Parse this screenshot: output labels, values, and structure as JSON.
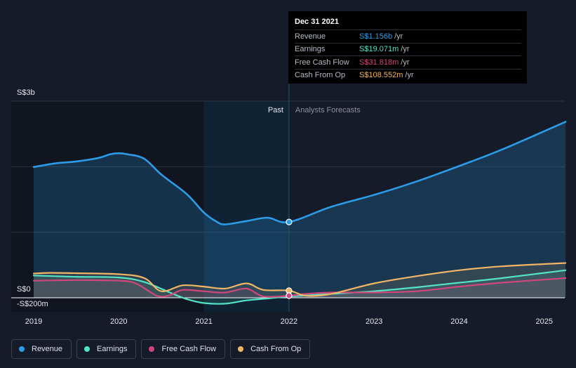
{
  "colors": {
    "revenue": "#2d9be6",
    "earnings": "#54e3c6",
    "free_cash_flow": "#d0477c",
    "cash_from_op": "#f0b665",
    "background": "#151b28"
  },
  "tooltip": {
    "date": "Dec 31 2021",
    "rows": [
      {
        "label": "Revenue",
        "value": "S$1.156b",
        "unit": "/yr"
      },
      {
        "label": "Earnings",
        "value": "S$19.071m",
        "unit": "/yr"
      },
      {
        "label": "Free Cash Flow",
        "value": "S$31.818m",
        "unit": "/yr"
      },
      {
        "label": "Cash From Op",
        "value": "S$108.552m",
        "unit": "/yr"
      }
    ]
  },
  "legend": [
    {
      "label": "Revenue",
      "icon": "revenue-dot"
    },
    {
      "label": "Earnings",
      "icon": "earnings-dot"
    },
    {
      "label": "Free Cash Flow",
      "icon": "free-cash-flow-dot"
    },
    {
      "label": "Cash From Op",
      "icon": "cash-from-op-dot"
    }
  ],
  "chart_data": {
    "type": "area",
    "title": "",
    "xlabel": "",
    "ylabel": "",
    "ylim": [
      -200,
      3000
    ],
    "xlim": [
      2018.97,
      2025.25
    ],
    "y_axis_labels": [
      {
        "text": "S$3b",
        "value": 3000
      },
      {
        "text": "S$0",
        "value": 0
      },
      {
        "text": "-S$200m",
        "value": -200
      }
    ],
    "x_ticks": [
      "2019",
      "2020",
      "2021",
      "2022",
      "2023",
      "2024",
      "2025"
    ],
    "x_tick_values": [
      2019,
      2020,
      2021,
      2022,
      2023,
      2024,
      2025
    ],
    "divider": {
      "x": 2022.0,
      "past_label": "Past",
      "forecast_label": "Analysts Forecasts"
    },
    "highlight_start": 2021.0,
    "series": [
      {
        "name": "Revenue",
        "key": "revenue",
        "x": [
          2019.0,
          2019.25,
          2019.5,
          2019.75,
          2019.9,
          2020.0,
          2020.1,
          2020.3,
          2020.5,
          2020.8,
          2021.0,
          2021.15,
          2021.25,
          2021.5,
          2021.75,
          2022.0,
          2022.5,
          2023.0,
          2023.5,
          2024.0,
          2024.5,
          2025.25
        ],
        "values": [
          1995,
          2050,
          2080,
          2130,
          2190,
          2205,
          2190,
          2120,
          1880,
          1580,
          1300,
          1160,
          1120,
          1170,
          1220,
          1156,
          1390,
          1570,
          1775,
          2010,
          2260,
          2685
        ]
      },
      {
        "name": "Earnings",
        "key": "earnings",
        "x": [
          2019.0,
          2019.5,
          2020.0,
          2020.3,
          2020.6,
          2020.8,
          2021.0,
          2021.25,
          2021.5,
          2021.75,
          2022.0,
          2022.5,
          2023.0,
          2023.5,
          2024.0,
          2024.5,
          2025.25
        ],
        "values": [
          340,
          320,
          310,
          240,
          80,
          -20,
          -80,
          -90,
          -40,
          -10,
          19,
          60,
          100,
          160,
          230,
          300,
          420
        ]
      },
      {
        "name": "Free Cash Flow",
        "key": "free_cash_flow",
        "x": [
          2019.0,
          2019.5,
          2020.0,
          2020.2,
          2020.45,
          2020.6,
          2020.75,
          2021.0,
          2021.25,
          2021.5,
          2021.7,
          2022.0,
          2022.2,
          2022.5,
          2023.0,
          2023.5,
          2024.0,
          2024.5,
          2025.25
        ],
        "values": [
          260,
          270,
          260,
          220,
          30,
          40,
          120,
          100,
          80,
          140,
          20,
          32,
          60,
          80,
          80,
          100,
          170,
          230,
          300
        ]
      },
      {
        "name": "Cash From Op",
        "key": "cash_from_op",
        "x": [
          2019.0,
          2019.2,
          2019.5,
          2020.0,
          2020.3,
          2020.5,
          2020.75,
          2021.0,
          2021.25,
          2021.5,
          2021.7,
          2022.0,
          2022.2,
          2022.5,
          2023.0,
          2023.5,
          2024.0,
          2024.5,
          2025.25
        ],
        "values": [
          370,
          380,
          375,
          360,
          300,
          100,
          190,
          170,
          140,
          220,
          120,
          109,
          30,
          60,
          220,
          330,
          420,
          480,
          530
        ]
      }
    ],
    "markers": [
      {
        "key": "revenue",
        "x": 2022.0,
        "y": 1156
      },
      {
        "key": "cash_from_op",
        "x": 2022.0,
        "y": 109
      },
      {
        "key": "free_cash_flow",
        "x": 2022.0,
        "y": 32
      }
    ]
  }
}
